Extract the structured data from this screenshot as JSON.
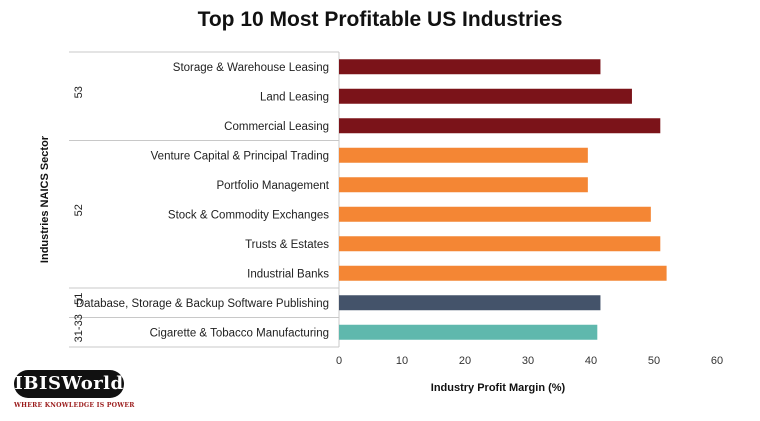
{
  "chart_data": {
    "type": "bar",
    "orientation": "horizontal",
    "title": "Top 10 Most Profitable US Industries",
    "xlabel": "Industry Profit Margin (%)",
    "ylabel": "Industries NAICS Sector",
    "xlim": [
      0,
      60
    ],
    "xticks": [
      0,
      10,
      20,
      30,
      40,
      50,
      60
    ],
    "grid": false,
    "legend": "none",
    "categories": [
      "Storage & Warehouse Leasing",
      "Land Leasing",
      "Commercial Leasing",
      "Venture Capital & Principal Trading",
      "Portfolio Management",
      "Stock & Commodity Exchanges",
      "Trusts & Estates",
      "Industrial Banks",
      "Database, Storage & Backup Software Publishing",
      "Cigarette & Tobacco Manufacturing"
    ],
    "values": [
      41.5,
      46.5,
      51.0,
      39.5,
      39.5,
      49.5,
      51.0,
      52.0,
      41.5,
      41.0
    ],
    "groups": [
      {
        "label": "53",
        "count": 3,
        "color": "#7b1319"
      },
      {
        "label": "52",
        "count": 5,
        "color": "#f48634"
      },
      {
        "label": "51",
        "count": 1,
        "color": "#44536a"
      },
      {
        "label": "31-33",
        "count": 1,
        "color": "#5fb8ad"
      }
    ]
  },
  "logo": {
    "text": "IBISWorld",
    "tagline": "WHERE KNOWLEDGE IS POWER"
  }
}
